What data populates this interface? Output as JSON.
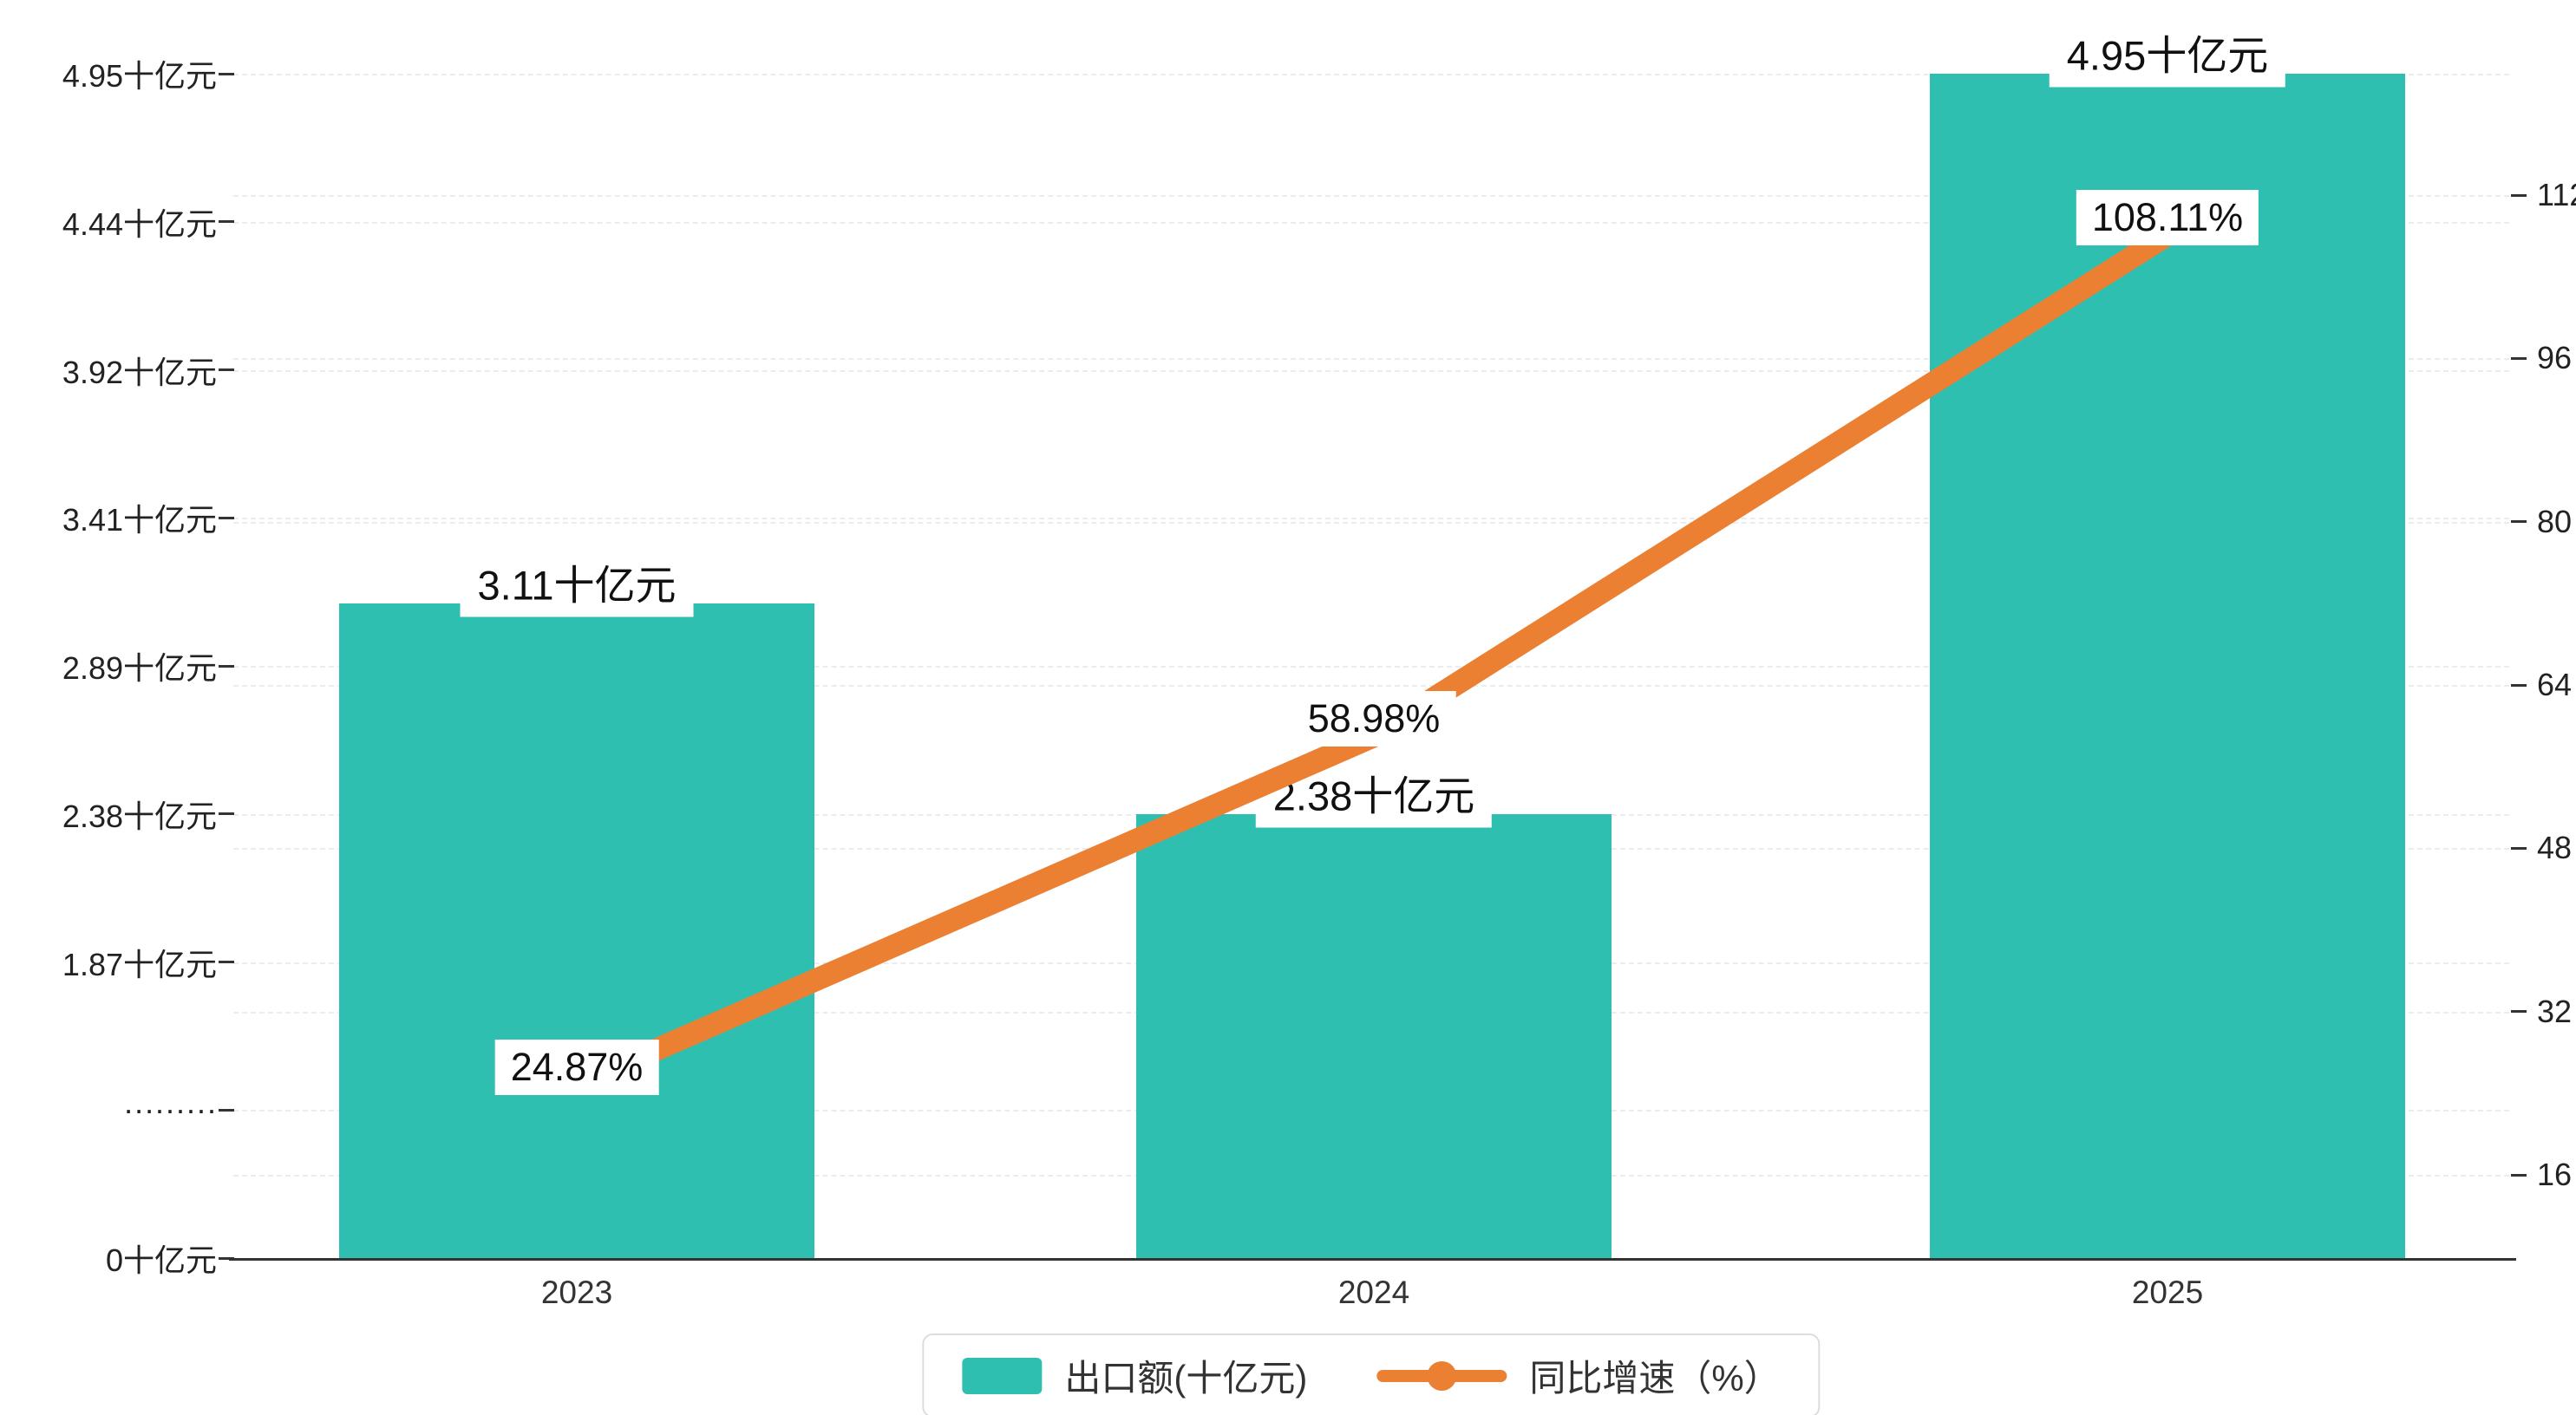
{
  "chart_data": {
    "type": "bar",
    "subtype": "bar-line-combo",
    "categories": [
      "2023",
      "2024",
      "2025"
    ],
    "series": [
      {
        "name": "出口额(十亿元)",
        "type": "bar",
        "axis": "left",
        "values": [
          3.11,
          2.38,
          4.95
        ],
        "data_labels": [
          "3.11十亿元",
          "2.38十亿元",
          "4.95十亿元"
        ]
      },
      {
        "name": "同比增速（%）",
        "type": "line",
        "axis": "right",
        "values": [
          24.87,
          58.98,
          108.11
        ],
        "data_labels": [
          "24.87%",
          "58.98%",
          "108.11%"
        ]
      }
    ],
    "left_axis": {
      "ticks_bottom_to_top": [
        "0十亿元",
        "·········",
        "1.87十亿元",
        "2.38十亿元",
        "2.89十亿元",
        "3.41十亿元",
        "3.92十亿元",
        "4.44十亿元",
        "4.95十亿元"
      ]
    },
    "right_axis": {
      "ticks_bottom_to_top": [
        "16",
        "32",
        "48",
        "64",
        "80",
        "96",
        "112"
      ]
    },
    "legend_position": "bottom-center",
    "grid": "dashed",
    "colors": {
      "bar": "#2fbfb1",
      "line": "#eb8032",
      "label_bg": "#ffffff",
      "axis_text": "#222222"
    }
  }
}
